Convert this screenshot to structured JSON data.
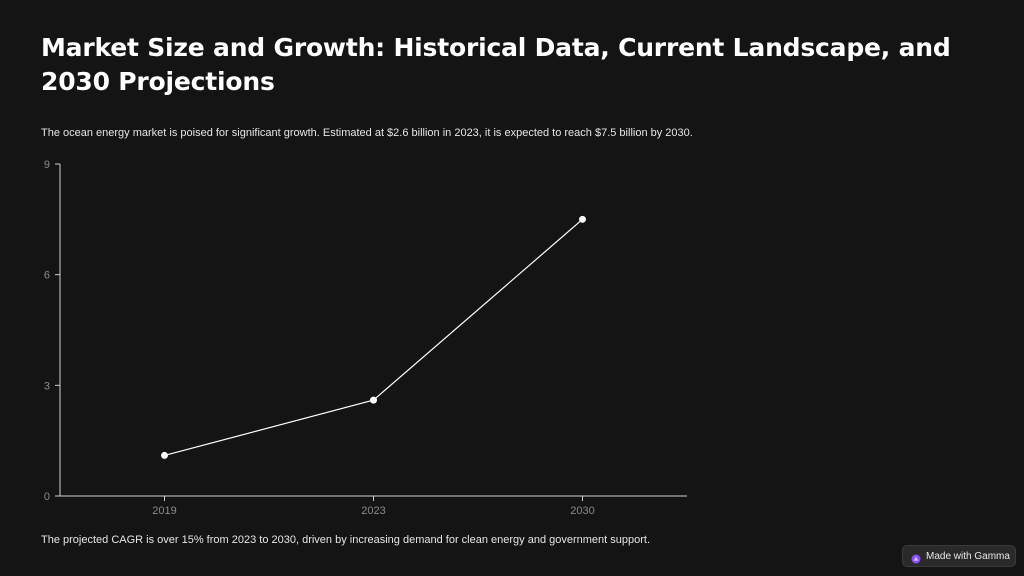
{
  "slide": {
    "title": "Market Size and Growth: Historical Data, Current Landscape, and 2030 Projections",
    "intro": "The ocean energy market is poised for significant growth. Estimated at $2.6 billion in 2023, it is expected to reach $7.5 billion by 2030.",
    "footer": "The projected CAGR is over 15% from 2023 to 2030, driven by increasing demand for clean energy and government support."
  },
  "badge": {
    "label": "Made with Gamma",
    "icon": "gamma-logo-icon"
  },
  "colors": {
    "background": "#141414",
    "line": "#ffffff",
    "axis": "#d0d0d0",
    "tick_text": "#8a8a8a",
    "badge_icon": "#a66cff"
  },
  "chart_data": {
    "type": "line",
    "categories": [
      "2019",
      "2023",
      "2030"
    ],
    "values": [
      1.1,
      2.6,
      7.5
    ],
    "title": "",
    "xlabel": "",
    "ylabel": "",
    "ylim": [
      0,
      9
    ],
    "yticks": [
      "0",
      "3",
      "6",
      "9"
    ],
    "grid": false,
    "legend": "none"
  }
}
